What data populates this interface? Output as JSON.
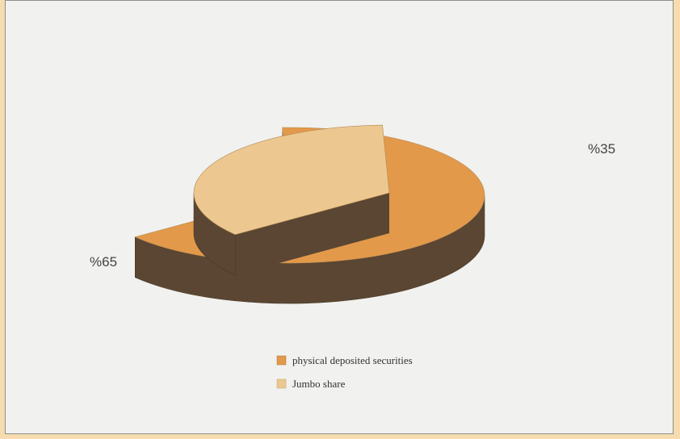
{
  "chart_data": {
    "type": "pie",
    "style": "3d-exploded",
    "slices": [
      {
        "label": "physical deposited securities",
        "value": 65,
        "value_label": "%65",
        "color": "#e3994a"
      },
      {
        "label": "Jumbo share",
        "value": 35,
        "value_label": "%35",
        "color": "#ecc890"
      }
    ],
    "side_color": "#5a4632",
    "legend_position": "bottom-center"
  }
}
